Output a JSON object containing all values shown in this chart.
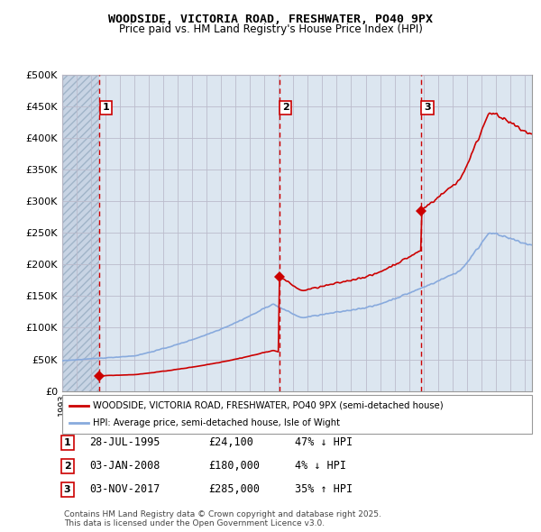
{
  "title": "WOODSIDE, VICTORIA ROAD, FRESHWATER, PO40 9PX",
  "subtitle": "Price paid vs. HM Land Registry's House Price Index (HPI)",
  "xmin": 1993.0,
  "xmax": 2025.5,
  "ymin": 0,
  "ymax": 500000,
  "yticks": [
    0,
    50000,
    100000,
    150000,
    200000,
    250000,
    300000,
    350000,
    400000,
    450000,
    500000
  ],
  "ytick_labels": [
    "£0",
    "£50K",
    "£100K",
    "£150K",
    "£200K",
    "£250K",
    "£300K",
    "£350K",
    "£400K",
    "£450K",
    "£500K"
  ],
  "purchases": [
    {
      "label": "1",
      "date": "28-JUL-1995",
      "price": 24100,
      "year": 1995.57,
      "pct": "47%",
      "dir": "↓"
    },
    {
      "label": "2",
      "date": "03-JAN-2008",
      "price": 180000,
      "year": 2008.01,
      "pct": "4%",
      "dir": "↓"
    },
    {
      "label": "3",
      "date": "03-NOV-2017",
      "price": 285000,
      "year": 2017.84,
      "pct": "35%",
      "dir": "↑"
    }
  ],
  "legend_line1": "WOODSIDE, VICTORIA ROAD, FRESHWATER, PO40 9PX (semi-detached house)",
  "legend_line2": "HPI: Average price, semi-detached house, Isle of Wight",
  "footer": "Contains HM Land Registry data © Crown copyright and database right 2025.\nThis data is licensed under the Open Government Licence v3.0.",
  "price_line_color": "#cc0000",
  "hpi_line_color": "#88aadd",
  "bg_color": "#dce6f0",
  "grid_color": "#bbbbcc",
  "dashed_line_color": "#cc0000",
  "hatch_color": "#c8d4e4"
}
